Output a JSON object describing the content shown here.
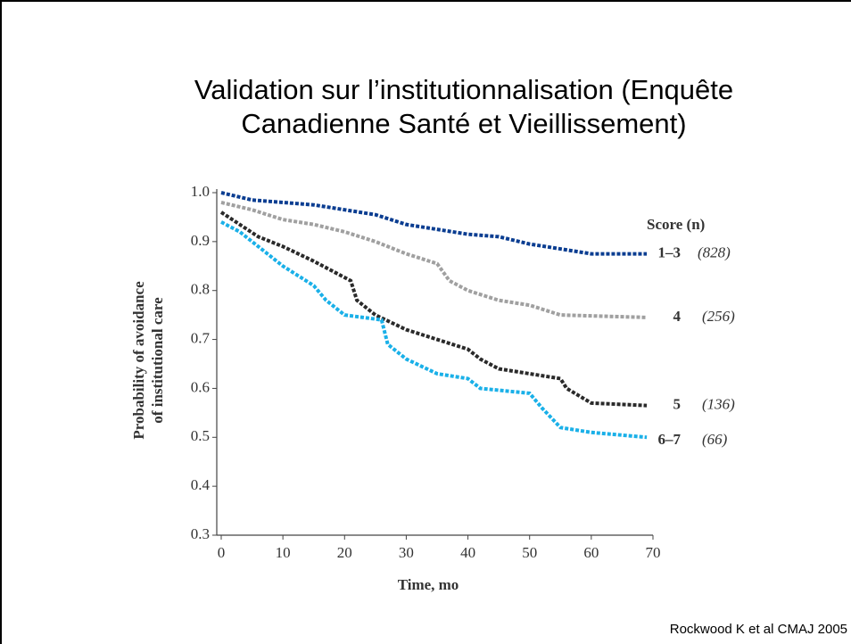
{
  "chart_data": {
    "type": "line",
    "title": "Validation sur l’institutionnalisation (Enquête Canadienne Santé et Vieillissement)",
    "xlabel": "Time, mo",
    "ylabel_lines": [
      "Probability of avoidance",
      "of institutional care"
    ],
    "legend_title": "Score (n)",
    "source": "Rockwood K et al CMAJ 2005",
    "xlim": [
      0,
      70
    ],
    "xticks": [
      0,
      10,
      20,
      30,
      40,
      50,
      60,
      70
    ],
    "ylim": [
      0.3,
      1.0
    ],
    "yticks": [
      {
        "value": 0.3,
        "label": "0.3"
      },
      {
        "value": 0.4,
        "label": "0.4"
      },
      {
        "value": 0.5,
        "label": "0.5"
      },
      {
        "value": 0.6,
        "label": "0.6"
      },
      {
        "value": 0.7,
        "label": "0.7"
      },
      {
        "value": 0.8,
        "label": "0.8"
      },
      {
        "value": 0.9,
        "label": "0.9"
      },
      {
        "value": 1.0,
        "label": "1.0"
      }
    ],
    "series": [
      {
        "name": "1–3",
        "count_label": "(828)",
        "color": "#0a3d91",
        "x": [
          0,
          5,
          10,
          15,
          20,
          25,
          30,
          35,
          40,
          45,
          50,
          55,
          60,
          69
        ],
        "values": [
          1.0,
          0.985,
          0.98,
          0.975,
          0.965,
          0.955,
          0.935,
          0.925,
          0.915,
          0.91,
          0.895,
          0.885,
          0.875,
          0.875
        ]
      },
      {
        "name": "4",
        "count_label": "(256)",
        "color": "#a0a0a0",
        "x": [
          0,
          5,
          10,
          15,
          20,
          25,
          30,
          35,
          37,
          40,
          45,
          50,
          55,
          69
        ],
        "values": [
          0.98,
          0.965,
          0.945,
          0.935,
          0.92,
          0.9,
          0.875,
          0.855,
          0.82,
          0.8,
          0.78,
          0.77,
          0.75,
          0.745
        ]
      },
      {
        "name": "5",
        "count_label": "(136)",
        "color": "#2a2a2a",
        "x": [
          0,
          3,
          6,
          10,
          15,
          18,
          21,
          22,
          25,
          30,
          35,
          40,
          42,
          45,
          50,
          55,
          56,
          60,
          69
        ],
        "values": [
          0.96,
          0.935,
          0.91,
          0.89,
          0.86,
          0.84,
          0.82,
          0.78,
          0.75,
          0.72,
          0.7,
          0.68,
          0.66,
          0.64,
          0.63,
          0.62,
          0.6,
          0.57,
          0.565
        ]
      },
      {
        "name": "6–7",
        "count_label": "(66)",
        "color": "#1ab0e8",
        "x": [
          0,
          3,
          6,
          10,
          15,
          17,
          20,
          26,
          27,
          30,
          35,
          40,
          42,
          50,
          52,
          55,
          60,
          69
        ],
        "values": [
          0.94,
          0.92,
          0.89,
          0.85,
          0.81,
          0.78,
          0.75,
          0.74,
          0.69,
          0.66,
          0.63,
          0.62,
          0.6,
          0.59,
          0.56,
          0.52,
          0.51,
          0.5
        ]
      }
    ]
  }
}
